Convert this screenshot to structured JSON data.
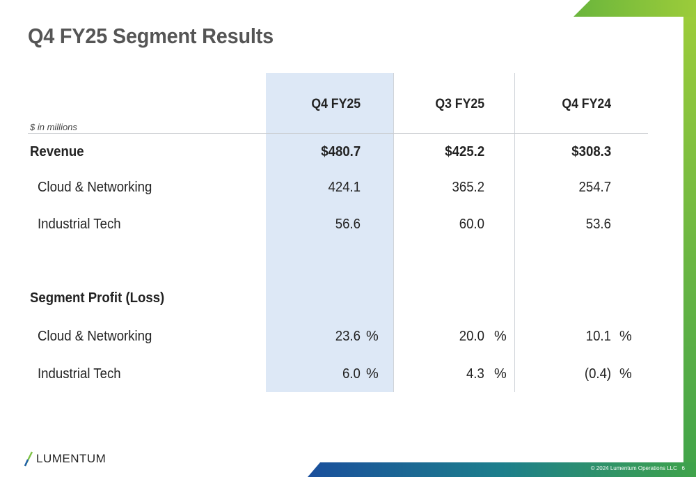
{
  "slide": {
    "title": "Q4 FY25 Segment Results",
    "units_note": "$ in millions"
  },
  "columns": [
    "Q4 FY25",
    "Q3 FY25",
    "Q4 FY24"
  ],
  "revenue": {
    "label": "Revenue",
    "totals": [
      "$480.7",
      "$425.2",
      "$308.3"
    ],
    "rows": [
      {
        "label": "Cloud & Networking",
        "values": [
          "424.1",
          "365.2",
          "254.7"
        ]
      },
      {
        "label": "Industrial Tech",
        "values": [
          "56.6",
          "60.0",
          "53.6"
        ]
      }
    ]
  },
  "segment_profit": {
    "label": "Segment Profit (Loss)",
    "percent_sign": "%",
    "rows": [
      {
        "label": "Cloud & Networking",
        "values": [
          "23.6",
          "20.0",
          "10.1"
        ]
      },
      {
        "label": "Industrial Tech",
        "values": [
          "6.0",
          "4.3",
          "(0.4)"
        ]
      }
    ]
  },
  "brand": {
    "logo_text": "LUMENTUM",
    "footer": "© 2024 Lumentum Operations LLC",
    "page_number": "6"
  },
  "colors": {
    "accent_green": "#7cc242",
    "accent_blue": "#1f5fa8",
    "highlight": "#dde8f6"
  }
}
